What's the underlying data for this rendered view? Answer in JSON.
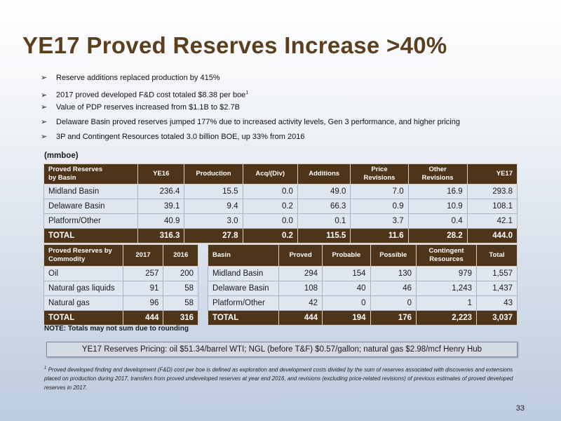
{
  "slide": {
    "title": "YE17 Proved Reserves Increase >40%",
    "bullet_arrow": "➢",
    "bullets": [
      "Reserve additions replaced production by 415%",
      "2017 proved developed F&D cost totaled $8.38 per boe",
      "Value of PDP reserves increased from $1.1B to $2.7B",
      "Delaware Basin proved reserves jumped 177% due to increased activity levels, Gen 3 performance, and higher pricing",
      "3P and Contingent Resources totaled 3.0 billion BOE, up 33% from 2016"
    ],
    "bullet_footnote_mark": "1",
    "units": "(mmboe)",
    "note": "NOTE: Totals may not sum due to rounding",
    "pricing": "YE17 Reserves Pricing: oil $51.34/barrel WTI; NGL (before T&F) $0.57/gallon; natural gas $2.98/mcf Henry Hub",
    "footnote_mark": "1",
    "footnote": "Proved developed finding and development (F&D) cost per boe is defined as exploration and development costs divided by the sum of reserves associated with discoveries and extensions placed on production during 2017, transfers from proved undeveloped reserves at year end 2016, and revisions (excluding price-related revisions) of previous estimates of proved developed reserves in 2017.",
    "page_number": "33"
  },
  "basin_table": {
    "headers": [
      "Proved Reserves\nby Basin",
      "YE16",
      "Production",
      "Acq/(Div)",
      "Additions",
      "Price\nRevisions",
      "Other\nRevisions",
      "YE17"
    ],
    "rows": [
      [
        "Midland Basin",
        "236.4",
        "15.5",
        "0.0",
        "49.0",
        "7.0",
        "16.9",
        "293.8"
      ],
      [
        "Delaware Basin",
        "39.1",
        "9.4",
        "0.2",
        "66.3",
        "0.9",
        "10.9",
        "108.1"
      ],
      [
        "Platform/Other",
        "40.9",
        "3.0",
        "0.0",
        "0.1",
        "3.7",
        "0.4",
        "42.1"
      ]
    ],
    "total": [
      "TOTAL",
      "316.3",
      "27.8",
      "0.2",
      "115.5",
      "11.6",
      "28.2",
      "444.0"
    ]
  },
  "commodity_table": {
    "headers": [
      "Proved Reserves by\nCommodity",
      "2017",
      "2016"
    ],
    "rows": [
      [
        "Oil",
        "257",
        "200"
      ],
      [
        "Natural gas liquids",
        "91",
        "58"
      ],
      [
        "Natural gas",
        "96",
        "58"
      ]
    ],
    "total": [
      "TOTAL",
      "444",
      "316"
    ]
  },
  "resources_table": {
    "headers": [
      "Basin",
      "Proved",
      "Probable",
      "Possible",
      "Contingent\nResources",
      "Total"
    ],
    "rows": [
      [
        "Midland Basin",
        "294",
        "154",
        "130",
        "979",
        "1,557"
      ],
      [
        "Delaware Basin",
        "108",
        "40",
        "46",
        "1,243",
        "1,437"
      ],
      [
        "Platform/Other",
        "42",
        "0",
        "0",
        "1",
        "43"
      ]
    ],
    "total": [
      "TOTAL",
      "444",
      "194",
      "176",
      "2,223",
      "3,037"
    ]
  }
}
